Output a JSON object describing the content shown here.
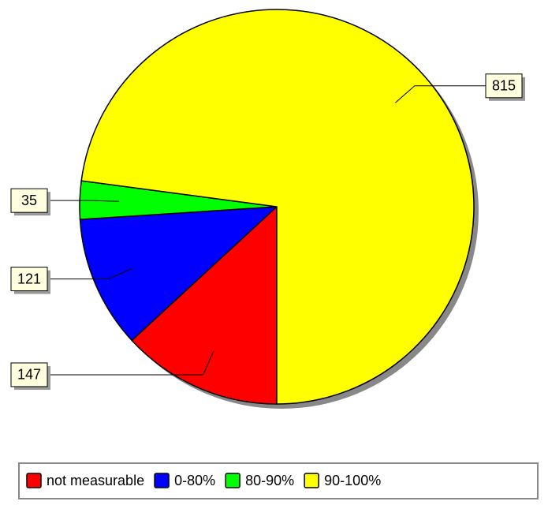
{
  "chart_data": {
    "type": "pie",
    "categories": [
      "not measurable",
      "0-80%",
      "80-90%",
      "90-100%"
    ],
    "values": [
      147,
      121,
      35,
      815
    ],
    "colors": [
      "#ff0000",
      "#0000ff",
      "#00ff00",
      "#ffff00"
    ]
  }
}
